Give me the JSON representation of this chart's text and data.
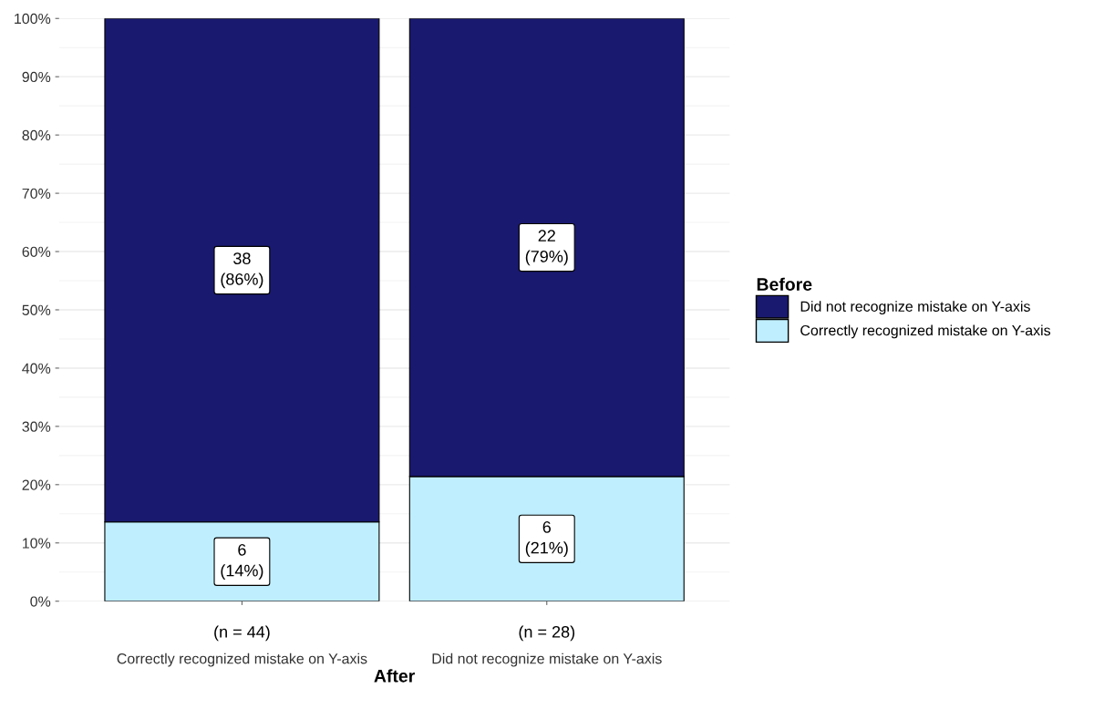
{
  "chart_data": {
    "type": "bar",
    "stacked": true,
    "xlabel": "After",
    "legend_title": "Before",
    "categories": [
      "Correctly recognized mistake on Y-axis",
      "Did not recognize mistake on Y-axis"
    ],
    "series": [
      {
        "name": "Correctly recognized mistake on Y-axis",
        "color": "#bfefff",
        "values": [
          13.6,
          21.4
        ],
        "value_labels": [
          "6\n(14%)",
          "6\n(21%)"
        ]
      },
      {
        "name": "Did not recognize mistake on Y-axis",
        "color": "#191970",
        "values": [
          86.4,
          78.6
        ],
        "value_labels": [
          "38\n(86%)",
          "22\n(79%)"
        ]
      }
    ],
    "ylim": [
      0,
      100
    ],
    "yticks": [
      {
        "value": 0,
        "label": "0%"
      },
      {
        "value": 10,
        "label": "10%"
      },
      {
        "value": 20,
        "label": "20%"
      },
      {
        "value": 30,
        "label": "30%"
      },
      {
        "value": 40,
        "label": "40%"
      },
      {
        "value": 50,
        "label": "50%"
      },
      {
        "value": 60,
        "label": "60%"
      },
      {
        "value": 70,
        "label": "70%"
      },
      {
        "value": 80,
        "label": "80%"
      },
      {
        "value": 90,
        "label": "90%"
      },
      {
        "value": 100,
        "label": "100%"
      }
    ],
    "annotations": [
      "(n = 44)",
      "(n = 28)"
    ],
    "grid": "y",
    "legend": "right"
  }
}
